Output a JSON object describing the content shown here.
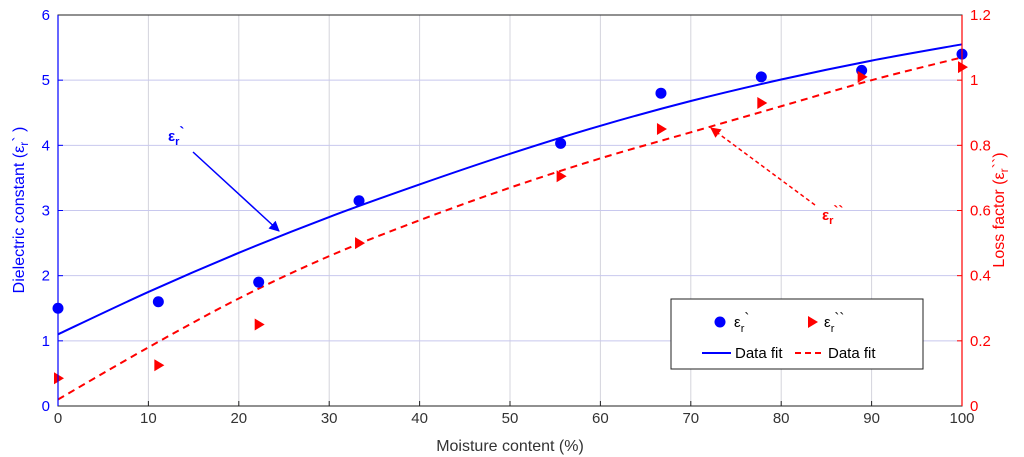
{
  "chart_data": {
    "type": "scatter",
    "xlabel": "Moisture content (%)",
    "ylabel_left": "Dielectric constant (ε",
    "ylabel_left_sub": "r",
    "ylabel_left_end": "` )",
    "ylabel_right": "Loss factor (ε",
    "ylabel_right_sub": "r",
    "ylabel_right_end": "``)",
    "xlim": [
      0,
      100
    ],
    "ylim_left": [
      0,
      6
    ],
    "ylim_right": [
      0,
      1.2
    ],
    "x_ticks": [
      "0",
      "10",
      "20",
      "30",
      "40",
      "50",
      "60",
      "70",
      "80",
      "90",
      "100"
    ],
    "y_ticks_left": [
      "0",
      "1",
      "2",
      "3",
      "4",
      "5",
      "6"
    ],
    "y_ticks_right": [
      "0",
      "0.2",
      "0.4",
      "0.6",
      "0.8",
      "1",
      "1.2"
    ],
    "grid": true,
    "legend_position": "bottom-right",
    "colors": {
      "left": "#0000ff",
      "right": "#ff0000"
    },
    "series": [
      {
        "name": "ε_r`",
        "axis": "left",
        "marker": "circle",
        "x": [
          0,
          11.1,
          22.2,
          33.3,
          55.6,
          66.7,
          77.8,
          88.9,
          100
        ],
        "y": [
          1.5,
          1.6,
          1.9,
          3.15,
          4.03,
          4.8,
          5.05,
          5.15,
          5.4
        ]
      },
      {
        "name": "ε_r``",
        "axis": "right",
        "marker": "triangle-right",
        "x": [
          0,
          11.1,
          22.2,
          33.3,
          55.6,
          66.7,
          77.8,
          88.9,
          100
        ],
        "y": [
          0.085,
          0.125,
          0.25,
          0.5,
          0.705,
          0.85,
          0.93,
          1.01,
          1.04
        ]
      },
      {
        "name": "Data fit",
        "axis": "left",
        "line": "solid",
        "x": [
          0,
          10,
          20,
          30,
          40,
          50,
          60,
          70,
          80,
          90,
          100
        ],
        "y": [
          1.1,
          1.75,
          2.35,
          2.9,
          3.4,
          3.87,
          4.3,
          4.68,
          5.01,
          5.3,
          5.55
        ]
      },
      {
        "name": "Data fit",
        "axis": "right",
        "line": "dashed",
        "x": [
          0,
          10,
          20,
          30,
          40,
          50,
          60,
          70,
          80,
          90,
          100
        ],
        "y": [
          0.02,
          0.18,
          0.33,
          0.46,
          0.57,
          0.67,
          0.76,
          0.84,
          0.92,
          1.0,
          1.07
        ]
      }
    ],
    "legend": {
      "entries": [
        {
          "label": "ε",
          "sub": "r",
          "end": "`"
        },
        {
          "label": "ε",
          "sub": "r",
          "end": "``"
        },
        {
          "label": "Data fit"
        },
        {
          "label": "Data fit"
        }
      ]
    },
    "annotations": [
      {
        "text": "ε",
        "sub": "r",
        "end": "`",
        "color": "#0000ff",
        "points_to": [
          25,
          2.6
        ]
      },
      {
        "text": "ε",
        "sub": "r",
        "end": "``",
        "color": "#ff0000",
        "points_to": [
          72,
          0.85
        ]
      }
    ]
  }
}
